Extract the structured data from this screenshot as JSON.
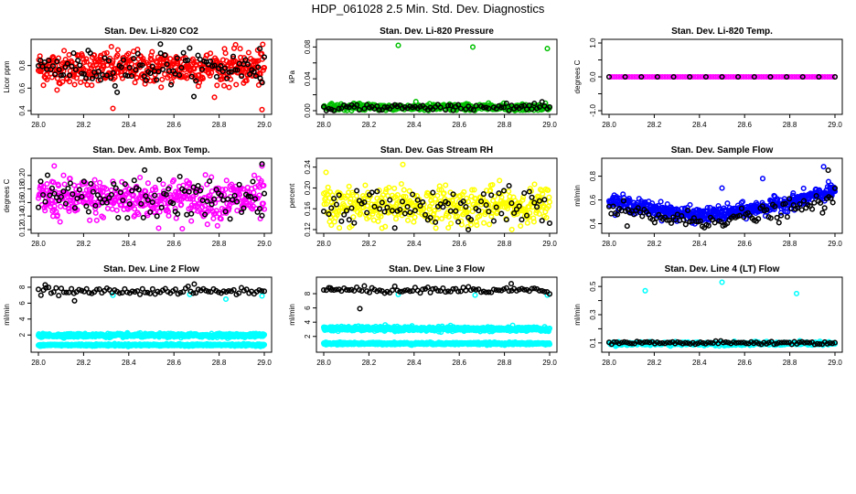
{
  "page": {
    "title": "HDP_061028  2.5 Min. Std. Dev. Diagnostics"
  },
  "colors": {
    "primary_series": "#000000",
    "co2": "#ff0000",
    "pressure": "#00c000",
    "temp": "#ff00ff",
    "amb_box": "#ff00ff",
    "rh": "#ffff00",
    "sample_flow": "#0000ff",
    "line_flow": "#00ffff"
  },
  "chart_data": [
    {
      "type": "scatter",
      "title": "Stan. Dev. Li-820 CO2",
      "xlabel": "",
      "ylabel": "Licor ppm",
      "xlim": [
        28.0,
        29.0
      ],
      "ylim": [
        0.4,
        1.0
      ],
      "xticks": [
        "28.0",
        "28.2",
        "28.4",
        "28.6",
        "28.8",
        "29.0"
      ],
      "yticks": [
        0.4,
        0.6,
        0.8
      ],
      "ytick_labels": [
        "0.4",
        "0.6",
        "0.8"
      ],
      "grid": false,
      "series": [
        {
          "color": "#ff0000",
          "pattern": "band",
          "center_start": 0.78,
          "center_end": 0.78,
          "spread": 0.1,
          "density": 450,
          "outliers": [
            {
              "x": 28.33,
              "y": 0.42
            },
            {
              "x": 28.99,
              "y": 0.41
            }
          ]
        },
        {
          "color": "#000000",
          "pattern": "band",
          "center_start": 0.78,
          "center_end": 0.78,
          "spread": 0.1,
          "density": 110,
          "outliers": [
            {
              "x": 28.54,
              "y": 0.99
            },
            {
              "x": 28.98,
              "y": 0.95
            }
          ]
        }
      ]
    },
    {
      "type": "scatter",
      "title": "Stan. Dev. Li-820 Pressure",
      "xlabel": "",
      "ylabel": "kPa",
      "xlim": [
        28.0,
        29.0
      ],
      "ylim": [
        0.0,
        0.085
      ],
      "xticks": [
        "28.0",
        "28.2",
        "28.4",
        "28.6",
        "28.8",
        "29.0"
      ],
      "yticks": [
        0.0,
        0.02,
        0.04,
        0.06,
        0.08
      ],
      "ytick_labels": [
        "0.00",
        "",
        "0.04",
        "",
        "0.08"
      ],
      "grid": false,
      "series": [
        {
          "color": "#00c000",
          "pattern": "band",
          "center_start": 0.004,
          "center_end": 0.004,
          "spread": 0.003,
          "density": 430,
          "outliers": [
            {
              "x": 28.33,
              "y": 0.082
            },
            {
              "x": 28.66,
              "y": 0.08
            },
            {
              "x": 28.99,
              "y": 0.078
            }
          ]
        },
        {
          "color": "#000000",
          "pattern": "band",
          "center_start": 0.004,
          "center_end": 0.004,
          "spread": 0.003,
          "density": 90,
          "outliers": []
        }
      ]
    },
    {
      "type": "scatter",
      "title": "Stan. Dev. Li-820 Temp.",
      "xlabel": "",
      "ylabel": "degrees C",
      "xlim": [
        28.0,
        29.0
      ],
      "ylim": [
        -1.0,
        1.0
      ],
      "xticks": [
        "28.0",
        "28.2",
        "28.4",
        "28.6",
        "28.8",
        "29.0"
      ],
      "yticks": [
        -1.0,
        -0.5,
        0.0,
        0.5,
        1.0
      ],
      "ytick_labels": [
        "-1.0",
        "",
        "0.0",
        "",
        "1.0"
      ],
      "grid": false,
      "series": [
        {
          "color": "#ff00ff",
          "pattern": "flat",
          "center_start": 0.0,
          "center_end": 0.0,
          "spread": 0.0,
          "density": 90,
          "outliers": []
        },
        {
          "color": "#000000",
          "pattern": "flat",
          "center_start": 0.0,
          "center_end": 0.0,
          "spread": 0.0,
          "density": 15,
          "outliers": []
        }
      ]
    },
    {
      "type": "scatter",
      "title": "Stan. Dev. Amb. Box Temp.",
      "xlabel": "",
      "ylabel": "degrees C",
      "xlim": [
        28.0,
        29.0
      ],
      "ylim": [
        0.12,
        0.22
      ],
      "xticks": [
        "28.0",
        "28.2",
        "28.4",
        "28.6",
        "28.8",
        "29.0"
      ],
      "yticks": [
        0.12,
        0.14,
        0.16,
        0.18,
        0.2
      ],
      "ytick_labels": [
        "0.12",
        "0.14",
        "0.16",
        "0.18",
        "0.20"
      ],
      "grid": false,
      "series": [
        {
          "color": "#ff00ff",
          "pattern": "band",
          "center_start": 0.165,
          "center_end": 0.165,
          "spread": 0.02,
          "density": 450,
          "outliers": [
            {
              "x": 28.07,
              "y": 0.214
            },
            {
              "x": 28.99,
              "y": 0.214
            }
          ]
        },
        {
          "color": "#000000",
          "pattern": "band",
          "center_start": 0.165,
          "center_end": 0.165,
          "spread": 0.02,
          "density": 100,
          "outliers": [
            {
              "x": 28.47,
              "y": 0.208
            },
            {
              "x": 28.99,
              "y": 0.217
            }
          ]
        }
      ]
    },
    {
      "type": "scatter",
      "title": "Stan. Dev. Gas Stream RH",
      "xlabel": "",
      "ylabel": "percent",
      "xlim": [
        28.0,
        29.0
      ],
      "ylim": [
        0.12,
        0.25
      ],
      "xticks": [
        "28.0",
        "28.2",
        "28.4",
        "28.6",
        "28.8",
        "29.0"
      ],
      "yticks": [
        0.12,
        0.16,
        0.2,
        0.24
      ],
      "ytick_labels": [
        "0.12",
        "0.16",
        "0.20",
        "0.24"
      ],
      "grid": false,
      "series": [
        {
          "color": "#ffff00",
          "pattern": "band",
          "center_start": 0.165,
          "center_end": 0.165,
          "spread": 0.025,
          "density": 420,
          "outliers": [
            {
              "x": 28.01,
              "y": 0.23
            },
            {
              "x": 28.35,
              "y": 0.245
            }
          ]
        },
        {
          "color": "#000000",
          "pattern": "band",
          "center_start": 0.165,
          "center_end": 0.165,
          "spread": 0.025,
          "density": 90,
          "outliers": [
            {
              "x": 28.64,
              "y": 0.12
            }
          ]
        }
      ]
    },
    {
      "type": "scatter",
      "title": "Stan. Dev. Sample Flow",
      "xlabel": "",
      "ylabel": "ml/min",
      "xlim": [
        28.0,
        29.0
      ],
      "ylim": [
        0.35,
        0.92
      ],
      "xticks": [
        "28.0",
        "28.2",
        "28.4",
        "28.6",
        "28.8",
        "29.0"
      ],
      "yticks": [
        0.4,
        0.6,
        0.8
      ],
      "ytick_labels": [
        "0.4",
        "0.6",
        "0.8"
      ],
      "grid": false,
      "series": [
        {
          "color": "#0000ff",
          "pattern": "curve",
          "center_start": 0.6,
          "center_mid": 0.47,
          "center_end": 0.68,
          "spread": 0.04,
          "density": 520,
          "outliers": [
            {
              "x": 28.95,
              "y": 0.88
            },
            {
              "x": 28.68,
              "y": 0.78
            },
            {
              "x": 28.5,
              "y": 0.7
            }
          ]
        },
        {
          "color": "#000000",
          "pattern": "curve",
          "center_start": 0.52,
          "center_mid": 0.42,
          "center_end": 0.6,
          "spread": 0.05,
          "density": 110,
          "outliers": [
            {
              "x": 28.08,
              "y": 0.38
            },
            {
              "x": 28.97,
              "y": 0.85
            }
          ]
        }
      ]
    },
    {
      "type": "scatter",
      "title": "Stan. Dev. Line 2 Flow",
      "xlabel": "",
      "ylabel": "ml/min",
      "xlim": [
        28.0,
        29.0
      ],
      "ylim": [
        0.3,
        8.8
      ],
      "xticks": [
        "28.0",
        "28.2",
        "28.4",
        "28.6",
        "28.8",
        "29.0"
      ],
      "yticks": [
        2,
        4,
        6,
        8
      ],
      "ytick_labels": [
        "2",
        "4",
        "6",
        "8"
      ],
      "grid": false,
      "series": [
        {
          "color": "#00ffff",
          "pattern": "band",
          "center_start": 1.95,
          "center_end": 1.95,
          "spread": 0.15,
          "density": 600,
          "outliers": [
            {
              "x": 28.33,
              "y": 7.0
            },
            {
              "x": 28.67,
              "y": 7.1
            },
            {
              "x": 28.83,
              "y": 6.5
            },
            {
              "x": 28.99,
              "y": 6.9
            }
          ]
        },
        {
          "color": "#00ffff",
          "pattern": "band",
          "center_start": 0.75,
          "center_end": 0.75,
          "spread": 0.08,
          "density": 600,
          "outliers": []
        },
        {
          "color": "#000000",
          "pattern": "band",
          "center_start": 7.5,
          "center_end": 7.5,
          "spread": 0.3,
          "density": 90,
          "outliers": [
            {
              "x": 28.03,
              "y": 8.3
            },
            {
              "x": 28.16,
              "y": 6.3
            },
            {
              "x": 28.69,
              "y": 8.4
            }
          ]
        }
      ]
    },
    {
      "type": "scatter",
      "title": "Stan. Dev. Line 3 Flow",
      "xlabel": "",
      "ylabel": "ml/min",
      "xlim": [
        28.0,
        29.0
      ],
      "ylim": [
        0.3,
        9.8
      ],
      "xticks": [
        "28.0",
        "28.2",
        "28.4",
        "28.6",
        "28.8",
        "29.0"
      ],
      "yticks": [
        2,
        4,
        6,
        8
      ],
      "ytick_labels": [
        "2",
        "4",
        "6",
        "8"
      ],
      "grid": false,
      "series": [
        {
          "color": "#00ffff",
          "pattern": "band",
          "center_start": 3.1,
          "center_end": 3.0,
          "spread": 0.2,
          "density": 600,
          "outliers": [
            {
              "x": 28.33,
              "y": 7.9
            },
            {
              "x": 28.67,
              "y": 7.8
            },
            {
              "x": 28.99,
              "y": 7.8
            }
          ]
        },
        {
          "color": "#00ffff",
          "pattern": "band",
          "center_start": 1.0,
          "center_end": 1.0,
          "spread": 0.1,
          "density": 600,
          "outliers": []
        },
        {
          "color": "#000000",
          "pattern": "band",
          "center_start": 8.5,
          "center_end": 8.5,
          "spread": 0.3,
          "density": 90,
          "outliers": [
            {
              "x": 28.03,
              "y": 8.8
            },
            {
              "x": 28.16,
              "y": 5.9
            },
            {
              "x": 28.83,
              "y": 9.4
            }
          ]
        }
      ]
    },
    {
      "type": "scatter",
      "title": "Stan. Dev. Line 4 (LT) Flow",
      "xlabel": "",
      "ylabel": "ml/min",
      "xlim": [
        28.0,
        29.0
      ],
      "ylim": [
        0.06,
        0.54
      ],
      "xticks": [
        "28.0",
        "28.2",
        "28.4",
        "28.6",
        "28.8",
        "29.0"
      ],
      "yticks": [
        0.1,
        0.2,
        0.3,
        0.4,
        0.5
      ],
      "ytick_labels": [
        "0.1",
        "",
        "0.3",
        "",
        "0.5"
      ],
      "grid": false,
      "series": [
        {
          "color": "#00ffff",
          "pattern": "band",
          "center_start": 0.095,
          "center_end": 0.095,
          "spread": 0.008,
          "density": 450,
          "outliers": [
            {
              "x": 28.16,
              "y": 0.47
            },
            {
              "x": 28.5,
              "y": 0.53
            },
            {
              "x": 28.83,
              "y": 0.45
            }
          ]
        },
        {
          "color": "#000000",
          "pattern": "band",
          "center_start": 0.1,
          "center_end": 0.1,
          "spread": 0.008,
          "density": 90,
          "outliers": []
        }
      ]
    }
  ]
}
